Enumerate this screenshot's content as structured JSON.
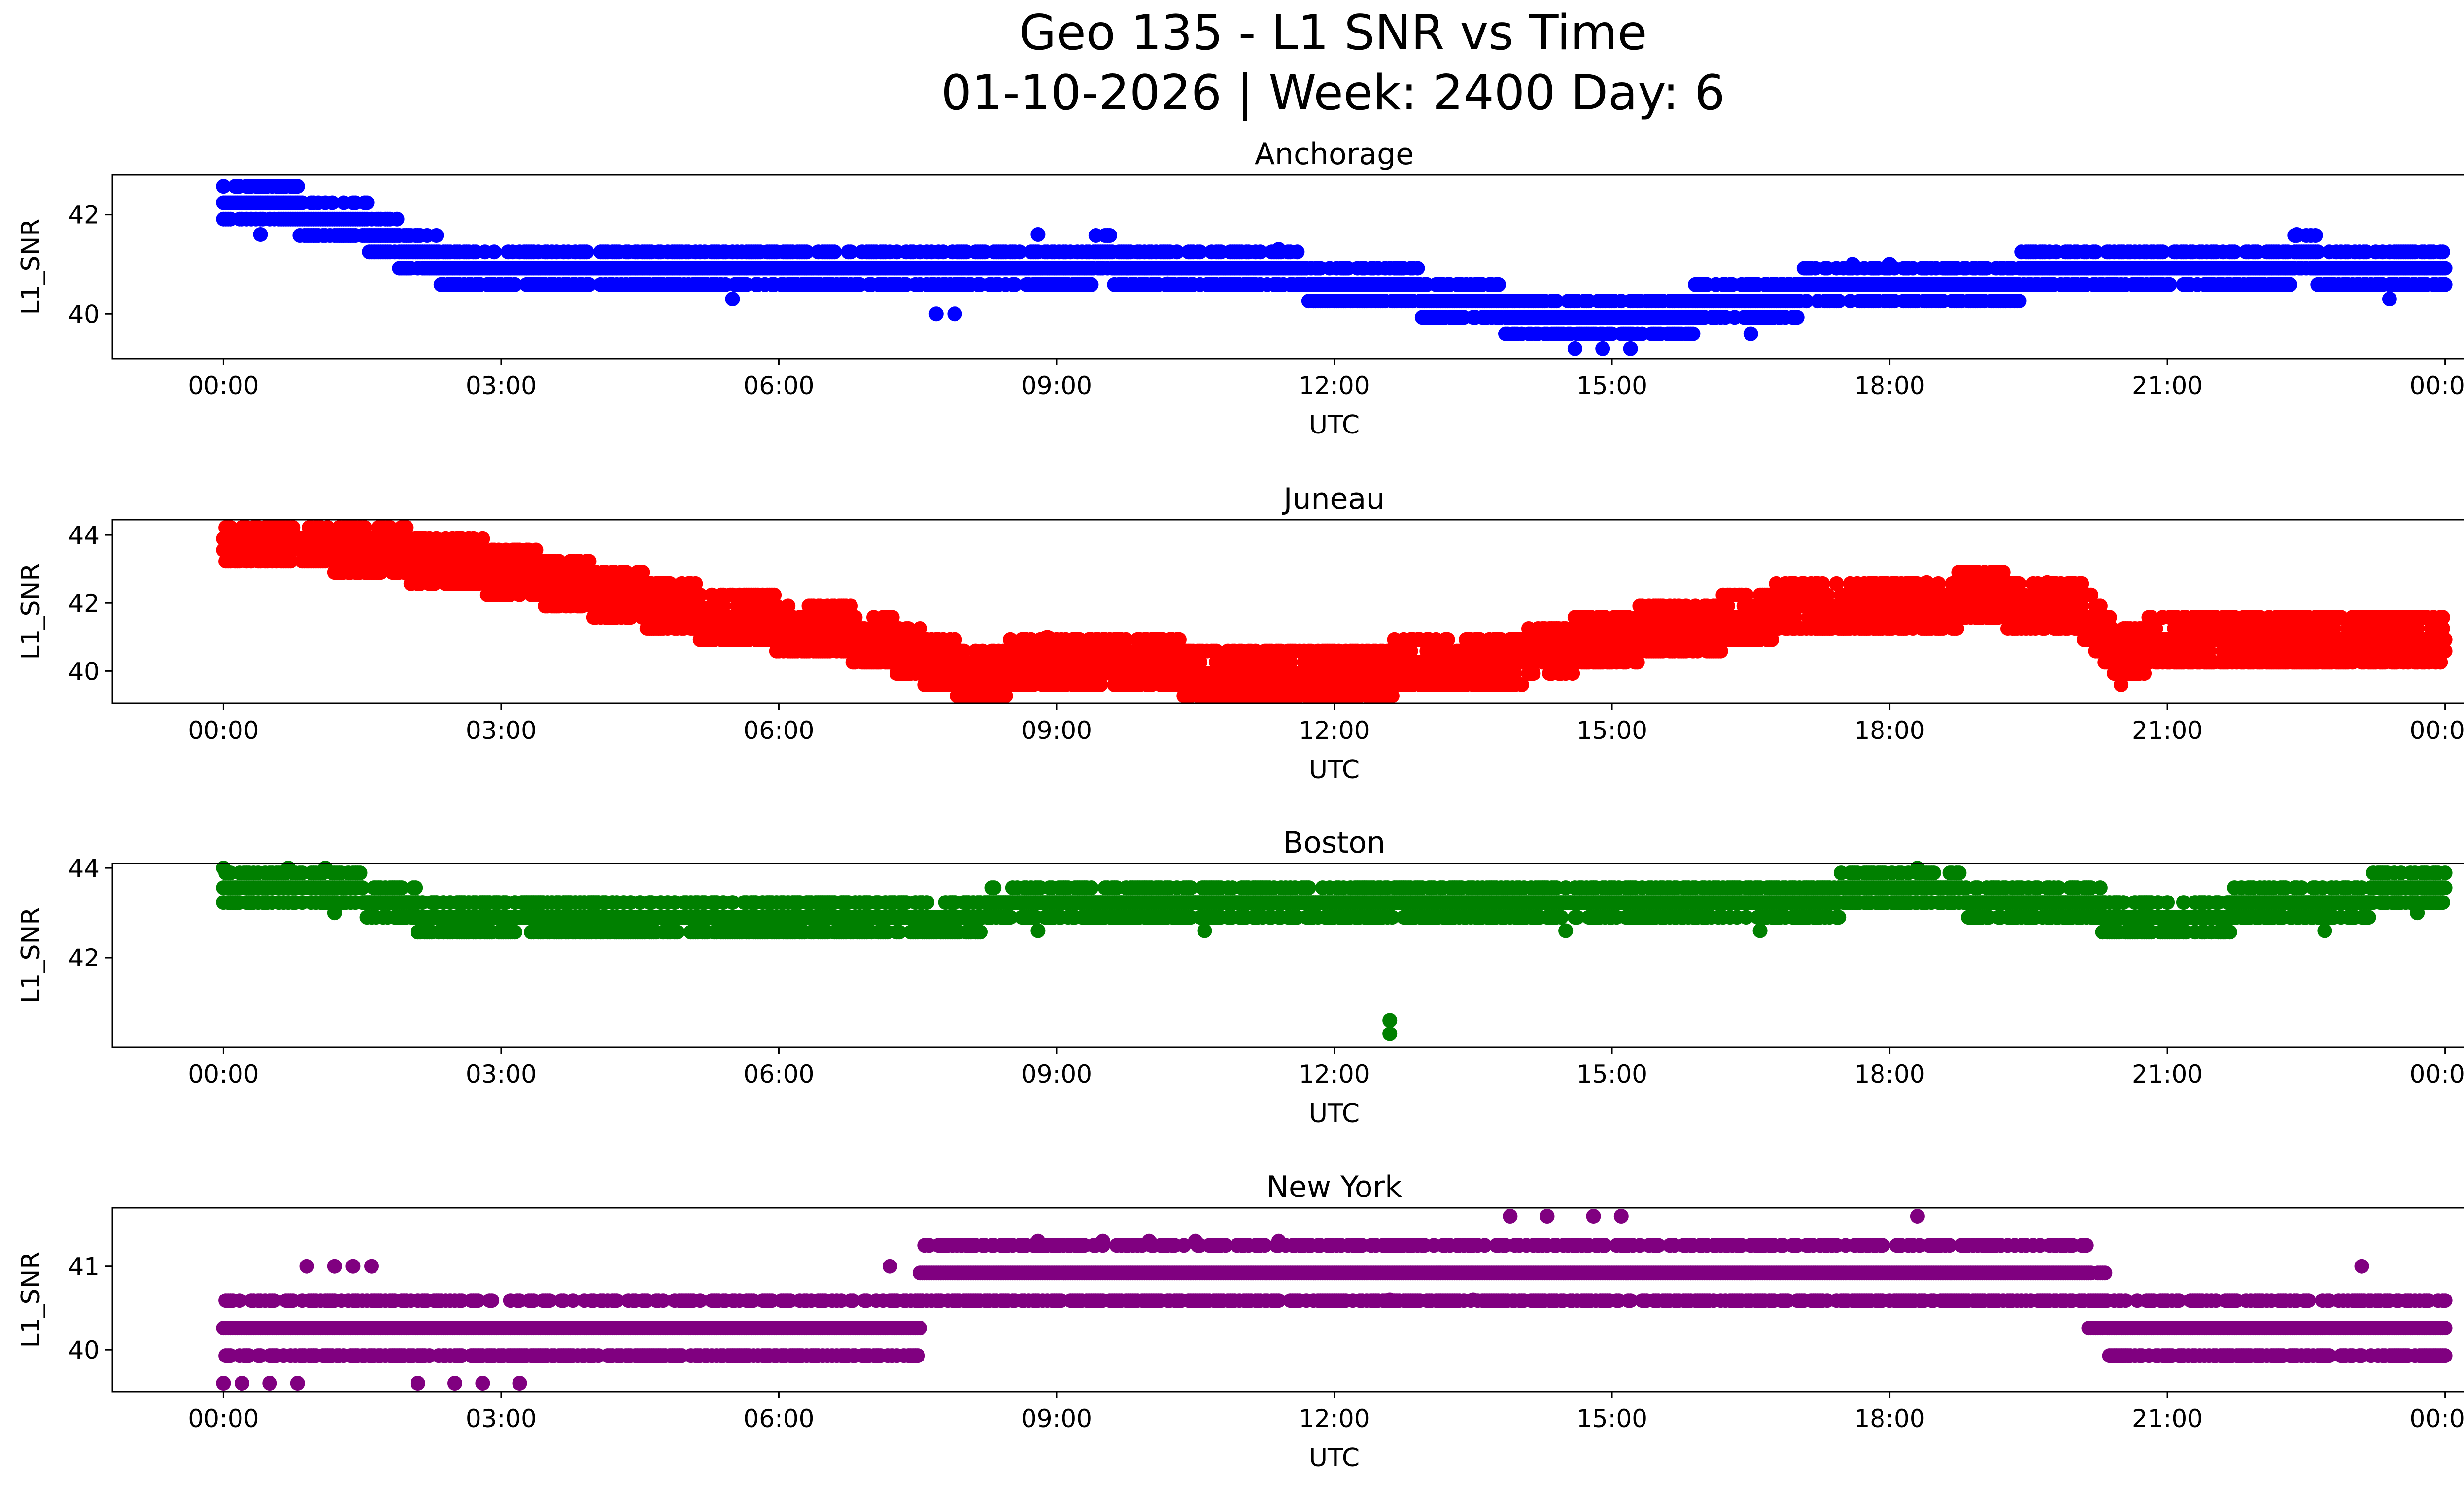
{
  "title_line1": "Geo 135 - L1 SNR vs Time",
  "title_line2": "01-10-2026 | Week: 2400 Day: 6",
  "chart_data": [
    {
      "type": "scatter",
      "title": "Anchorage",
      "xlabel": "UTC",
      "ylabel": "L1_SNR",
      "color": "#0000ff",
      "xlim": [
        -1.2,
        25.2
      ],
      "ylim": [
        39.1,
        42.8
      ],
      "xticks": [
        "00:00",
        "03:00",
        "06:00",
        "09:00",
        "12:00",
        "15:00",
        "18:00",
        "21:00",
        "00:00"
      ],
      "yticks": [
        40,
        42
      ],
      "snr_step": 0.33,
      "segments": [
        [
          0,
          42.4
        ],
        [
          0.5,
          42.2
        ],
        [
          1.0,
          42.0
        ],
        [
          1.5,
          41.8
        ],
        [
          2.0,
          41.3
        ],
        [
          2.6,
          40.9
        ],
        [
          4,
          40.9
        ],
        [
          6,
          40.9
        ],
        [
          8,
          40.9
        ],
        [
          9.5,
          41.1
        ],
        [
          11,
          40.9
        ],
        [
          12.5,
          40.6
        ],
        [
          13.5,
          40.2
        ],
        [
          14.5,
          39.9
        ],
        [
          15.5,
          39.9
        ],
        [
          16.3,
          40.3
        ],
        [
          17.5,
          40.5
        ],
        [
          19,
          40.7
        ],
        [
          20.5,
          40.9
        ],
        [
          22.5,
          41.1
        ],
        [
          24,
          40.9
        ]
      ],
      "spread": 1,
      "outliers": [
        [
          0.4,
          41.6
        ],
        [
          5.5,
          40.3
        ],
        [
          7.7,
          40.0
        ],
        [
          7.9,
          40.0
        ],
        [
          8.8,
          41.6
        ],
        [
          10.2,
          40.6
        ],
        [
          11.4,
          41.3
        ],
        [
          14.6,
          39.3
        ],
        [
          14.9,
          39.3
        ],
        [
          15.2,
          39.3
        ],
        [
          16.5,
          39.6
        ],
        [
          17.6,
          41.0
        ],
        [
          18.0,
          41.0
        ],
        [
          22.4,
          41.6
        ],
        [
          23.4,
          40.3
        ]
      ]
    },
    {
      "type": "scatter",
      "title": "Juneau",
      "xlabel": "UTC",
      "ylabel": "L1_SNR",
      "color": "#ff0000",
      "xlim": [
        -1.2,
        25.2
      ],
      "ylim": [
        39.05,
        44.45
      ],
      "xticks": [
        "00:00",
        "03:00",
        "06:00",
        "09:00",
        "12:00",
        "15:00",
        "18:00",
        "21:00",
        "00:00"
      ],
      "yticks": [
        40,
        42,
        44
      ],
      "snr_step": 0.33,
      "segments": [
        [
          0,
          44.0
        ],
        [
          1,
          43.8
        ],
        [
          2,
          43.4
        ],
        [
          3,
          43.0
        ],
        [
          4,
          42.4
        ],
        [
          5,
          41.8
        ],
        [
          6,
          41.4
        ],
        [
          7,
          41.0
        ],
        [
          8,
          40.0
        ],
        [
          9,
          40.2
        ],
        [
          10,
          40.2
        ],
        [
          11,
          39.9
        ],
        [
          12,
          39.9
        ],
        [
          13,
          40.2
        ],
        [
          14,
          40.4
        ],
        [
          15,
          41.0
        ],
        [
          16,
          41.3
        ],
        [
          17,
          41.9
        ],
        [
          18,
          42.0
        ],
        [
          19,
          42.1
        ],
        [
          20,
          42.0
        ],
        [
          20.5,
          40.5
        ],
        [
          21,
          41.0
        ],
        [
          22,
          41.0
        ],
        [
          23,
          41.0
        ],
        [
          24,
          41.0
        ]
      ],
      "spread": 2,
      "outliers": [
        [
          1.1,
          43.3
        ],
        [
          3.2,
          42.3
        ],
        [
          8.9,
          41.0
        ],
        [
          11.1,
          39.3
        ],
        [
          18.4,
          42.6
        ],
        [
          19.7,
          42.6
        ],
        [
          20.5,
          39.6
        ]
      ]
    },
    {
      "type": "scatter",
      "title": "Boston",
      "xlabel": "UTC",
      "ylabel": "L1_SNR",
      "color": "#008000",
      "xlim": [
        -1.2,
        25.2
      ],
      "ylim": [
        40.0,
        44.1
      ],
      "xticks": [
        "00:00",
        "03:00",
        "06:00",
        "09:00",
        "12:00",
        "15:00",
        "18:00",
        "21:00",
        "00:00"
      ],
      "yticks": [
        42,
        44
      ],
      "snr_step": 0.33,
      "segments": [
        [
          0,
          43.5
        ],
        [
          1.5,
          43.4
        ],
        [
          2.2,
          43.0
        ],
        [
          4,
          43.0
        ],
        [
          6,
          43.0
        ],
        [
          8,
          43.0
        ],
        [
          9,
          43.3
        ],
        [
          11,
          43.3
        ],
        [
          13,
          43.3
        ],
        [
          15,
          43.3
        ],
        [
          17,
          43.3
        ],
        [
          18,
          43.5
        ],
        [
          19.5,
          43.3
        ],
        [
          20.5,
          43.0
        ],
        [
          21.5,
          43.0
        ],
        [
          22.5,
          43.3
        ],
        [
          24,
          43.5
        ]
      ],
      "spread": 1,
      "outliers": [
        [
          0,
          44.0
        ],
        [
          0.7,
          44.0
        ],
        [
          1.1,
          44.0
        ],
        [
          1.2,
          43.0
        ],
        [
          8.8,
          42.6
        ],
        [
          10.6,
          42.6
        ],
        [
          12.6,
          40.6
        ],
        [
          12.6,
          40.3
        ],
        [
          14.5,
          42.6
        ],
        [
          16.6,
          42.6
        ],
        [
          18.3,
          44.0
        ],
        [
          22.7,
          42.6
        ],
        [
          23.7,
          43.0
        ]
      ]
    },
    {
      "type": "scatter",
      "title": "New York",
      "xlabel": "UTC",
      "ylabel": "L1_SNR",
      "color": "#800080",
      "xlim": [
        -1.2,
        25.2
      ],
      "ylim": [
        39.5,
        41.7
      ],
      "xticks": [
        "00:00",
        "03:00",
        "06:00",
        "09:00",
        "12:00",
        "15:00",
        "18:00",
        "21:00",
        "00:00"
      ],
      "yticks": [
        40,
        41
      ],
      "snr_step": 0.33,
      "segments": [
        [
          0,
          40.3
        ],
        [
          1,
          40.3
        ],
        [
          2,
          40.3
        ],
        [
          3,
          40.3
        ],
        [
          4,
          40.3
        ],
        [
          5,
          40.3
        ],
        [
          6,
          40.3
        ],
        [
          7.5,
          40.3
        ],
        [
          7.6,
          41.0
        ],
        [
          9,
          41.0
        ],
        [
          10,
          41.0
        ],
        [
          12,
          41.0
        ],
        [
          14,
          41.0
        ],
        [
          16,
          41.0
        ],
        [
          18,
          41.0
        ],
        [
          20,
          41.0
        ],
        [
          20.4,
          40.3
        ],
        [
          22,
          40.3
        ],
        [
          24,
          40.3
        ]
      ],
      "spread": 1,
      "outliers": [
        [
          0,
          39.6
        ],
        [
          0.2,
          39.6
        ],
        [
          0.5,
          39.6
        ],
        [
          0.8,
          39.6
        ],
        [
          0.9,
          41.0
        ],
        [
          1.2,
          41.0
        ],
        [
          1.4,
          41.0
        ],
        [
          1.6,
          41.0
        ],
        [
          2.1,
          39.6
        ],
        [
          2.5,
          39.6
        ],
        [
          2.8,
          39.6
        ],
        [
          3.2,
          39.6
        ],
        [
          7.2,
          41.0
        ],
        [
          8.8,
          41.3
        ],
        [
          9.5,
          41.3
        ],
        [
          10.0,
          41.3
        ],
        [
          10.5,
          41.3
        ],
        [
          11.4,
          41.3
        ],
        [
          12.6,
          40.6
        ],
        [
          13.5,
          40.6
        ],
        [
          13.9,
          41.6
        ],
        [
          14.3,
          41.6
        ],
        [
          14.8,
          41.6
        ],
        [
          15.1,
          41.6
        ],
        [
          18.3,
          41.6
        ],
        [
          23.1,
          41.0
        ]
      ]
    }
  ]
}
